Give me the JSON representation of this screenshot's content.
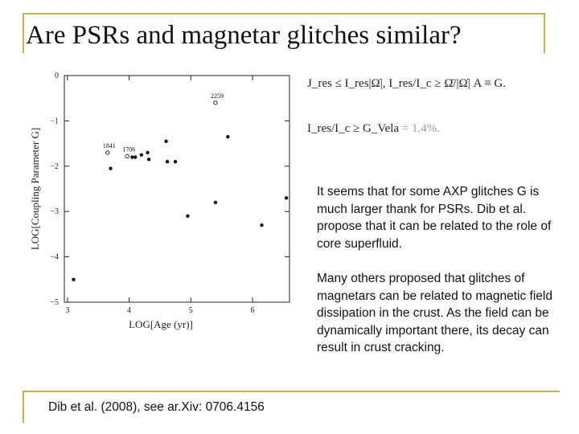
{
  "slide": {
    "title": "Are PSRs and magnetar glitches similar?",
    "paragraph1": "It seems that for some AXP glitches G is much larger thank for PSRs. Dib et al. propose that it can be related to the role of core superfluid.",
    "paragraph2": "Many others proposed that glitches of magnetars can be related to magnetic field dissipation in the crust. As the field can be dynamically important there, its decay can result in crust cracking.",
    "reference": "Dib et al. (2008), see ar.Xiv: 0706.4156",
    "formula1": "J_res ≤ I_res|Ω̇|,   I_res/I_c ≥ Ω̄/|Ω̇| A ≡ G.",
    "formula2_main": "I_res/I_c ≥ G_Vela",
    "formula2_value": " = 1.4%.",
    "accent_color": "#c8b33a"
  },
  "chart_data": {
    "type": "scatter",
    "xlabel": "LOG[Age (yr)]",
    "ylabel": "LOG[Coupling Parameter G]",
    "xlim": [
      2.95,
      6.6
    ],
    "ylim": [
      -5,
      0
    ],
    "xticks": [
      3,
      4,
      5,
      6
    ],
    "yticks": [
      0,
      -1,
      -2,
      -3,
      -4,
      -5
    ],
    "grid": false,
    "series": [
      {
        "marker": "filled",
        "points": [
          {
            "x": 3.1,
            "y": -4.5
          },
          {
            "x": 3.7,
            "y": -2.05
          },
          {
            "x": 4.05,
            "y": -1.8
          },
          {
            "x": 4.1,
            "y": -1.8
          },
          {
            "x": 4.2,
            "y": -1.75
          },
          {
            "x": 4.3,
            "y": -1.7
          },
          {
            "x": 4.32,
            "y": -1.85
          },
          {
            "x": 4.6,
            "y": -1.45
          },
          {
            "x": 4.62,
            "y": -1.9
          },
          {
            "x": 4.75,
            "y": -1.9
          },
          {
            "x": 4.95,
            "y": -3.1
          },
          {
            "x": 5.4,
            "y": -2.8
          },
          {
            "x": 5.6,
            "y": -1.35
          },
          {
            "x": 6.15,
            "y": -3.3
          },
          {
            "x": 6.55,
            "y": -2.7
          }
        ]
      },
      {
        "marker": "open",
        "points": [
          {
            "x": 3.65,
            "y": -1.7,
            "label": "1841"
          },
          {
            "x": 3.97,
            "y": -1.78,
            "label": "1706"
          },
          {
            "x": 5.4,
            "y": -0.6,
            "label": "2259"
          }
        ]
      }
    ]
  }
}
